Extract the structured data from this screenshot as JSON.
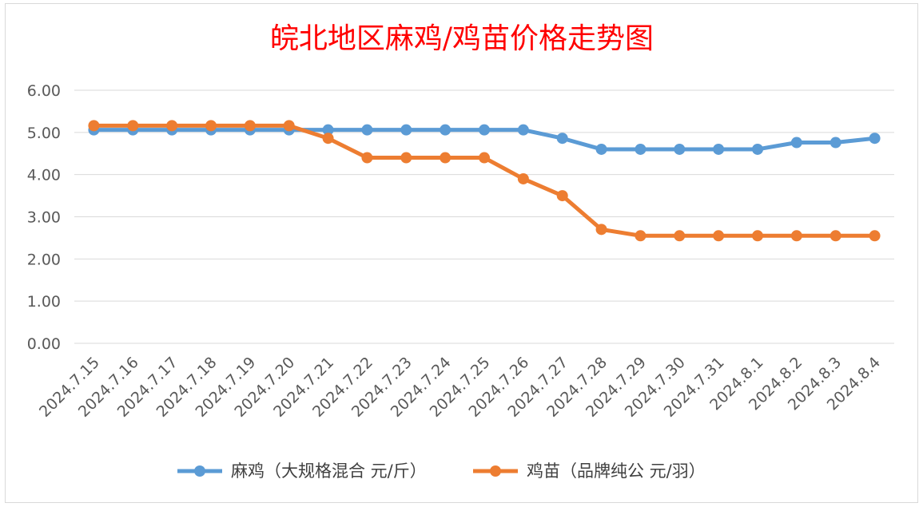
{
  "chart_data": {
    "type": "line",
    "title": "皖北地区麻鸡/鸡苗价格走势图",
    "title_color": "#ff0000",
    "categories": [
      "2024.7.15",
      "2024.7.16",
      "2024.7.17",
      "2024.7.18",
      "2024.7.19",
      "2024.7.20",
      "2024.7.21",
      "2024.7.22",
      "2024.7.23",
      "2024.7.24",
      "2024.7.25",
      "2024.7.26",
      "2024.7.27",
      "2024.7.28",
      "2024.7.29",
      "2024.7.30",
      "2024.7.31",
      "2024.8.1",
      "2024.8.2",
      "2024.8.3",
      "2024.8.4"
    ],
    "yticks": [
      "0.00",
      "1.00",
      "2.00",
      "3.00",
      "4.00",
      "5.00",
      "6.00"
    ],
    "ylim": [
      0,
      6
    ],
    "grid": true,
    "legend_position": "bottom",
    "series": [
      {
        "name": "麻鸡（大规格混合 元/斤）",
        "color": "#5b9bd5",
        "values": [
          5.06,
          5.06,
          5.06,
          5.06,
          5.06,
          5.06,
          5.06,
          5.06,
          5.06,
          5.06,
          5.06,
          5.06,
          4.86,
          4.6,
          4.6,
          4.6,
          4.6,
          4.6,
          4.76,
          4.76,
          4.86
        ]
      },
      {
        "name": "鸡苗（品牌纯公 元/羽）",
        "color": "#ed7d31",
        "values": [
          5.16,
          5.16,
          5.16,
          5.16,
          5.16,
          5.16,
          4.86,
          4.4,
          4.4,
          4.4,
          4.4,
          3.9,
          3.5,
          2.7,
          2.55,
          2.55,
          2.55,
          2.55,
          2.55,
          2.55,
          2.55
        ]
      }
    ]
  }
}
